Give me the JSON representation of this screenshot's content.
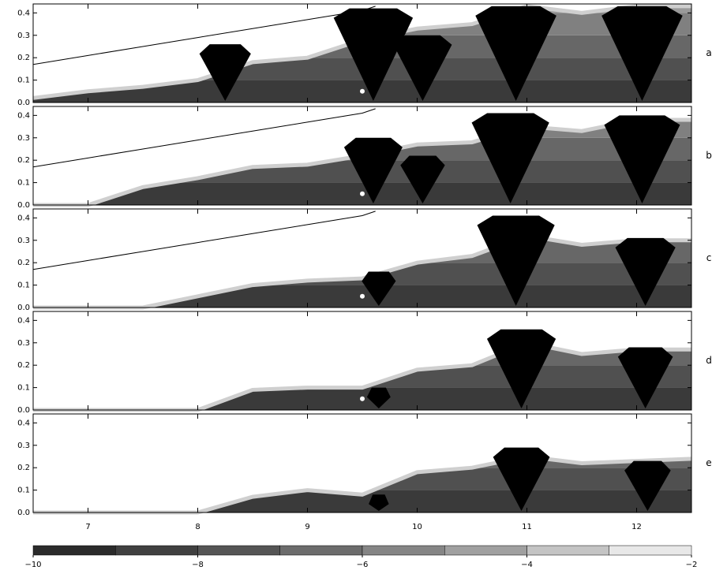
{
  "chart_data": [
    {
      "type": "stability-map",
      "label": "a",
      "xlim": [
        6.5,
        12.5
      ],
      "ylim": [
        0,
        0.44
      ],
      "yticks": [
        {
          "value": 0,
          "label": "0.0"
        },
        0.1,
        0.2,
        0.3,
        0.4
      ],
      "x": [
        6.5,
        7,
        7.5,
        8,
        8.5,
        9,
        9.5,
        10,
        10.5,
        11,
        11.5,
        12,
        12.5
      ],
      "edge": [
        0.02,
        0.05,
        0.07,
        0.1,
        0.18,
        0.2,
        0.28,
        0.33,
        0.35,
        0.43,
        0.4,
        0.43,
        0.43
      ],
      "wedges": [
        {
          "x": 8.25,
          "top": 0.26
        },
        {
          "x": 9.6,
          "top": 0.42
        },
        {
          "x": 10.05,
          "top": 0.3
        },
        {
          "x": 10.9,
          "top": 0.43
        },
        {
          "x": 12.05,
          "top": 0.43
        }
      ],
      "curve_x": [
        6.5,
        7,
        7.5,
        8,
        8.5,
        9,
        9.5,
        9.62
      ],
      "curve_y": [
        0.17,
        0.21,
        0.25,
        0.29,
        0.33,
        0.37,
        0.41,
        0.43
      ],
      "marker": {
        "x": 9.5,
        "y": 0.05
      }
    },
    {
      "type": "stability-map",
      "label": "b",
      "xlim": [
        6.5,
        12.5
      ],
      "ylim": [
        0,
        0.44
      ],
      "yticks": [
        {
          "value": 0,
          "label": "0.0"
        },
        0.1,
        0.2,
        0.3,
        0.4
      ],
      "x": [
        6.5,
        7,
        7.5,
        8,
        8.5,
        9,
        9.5,
        10,
        10.5,
        11,
        11.5,
        12,
        12.5
      ],
      "edge": [
        0,
        0,
        0.08,
        0.12,
        0.17,
        0.18,
        0.22,
        0.27,
        0.28,
        0.35,
        0.33,
        0.38,
        0.38
      ],
      "wedges": [
        {
          "x": 9.6,
          "top": 0.3
        },
        {
          "x": 10.05,
          "top": 0.22
        },
        {
          "x": 10.85,
          "top": 0.41
        },
        {
          "x": 12.05,
          "top": 0.4
        }
      ],
      "curve_x": [
        6.5,
        7,
        7.5,
        8,
        8.5,
        9,
        9.5,
        9.62
      ],
      "curve_y": [
        0.17,
        0.21,
        0.25,
        0.29,
        0.33,
        0.37,
        0.41,
        0.43
      ],
      "marker": {
        "x": 9.5,
        "y": 0.05
      }
    },
    {
      "type": "stability-map",
      "label": "c",
      "xlim": [
        6.5,
        12.5
      ],
      "ylim": [
        0,
        0.44
      ],
      "yticks": [
        {
          "value": 0,
          "label": "0.0"
        },
        0.1,
        0.2,
        0.3,
        0.4
      ],
      "x": [
        6.5,
        7,
        7.5,
        8,
        8.5,
        9,
        9.5,
        10,
        10.5,
        11,
        11.5,
        12,
        12.5
      ],
      "edge": [
        0,
        0,
        0,
        0.05,
        0.1,
        0.12,
        0.13,
        0.2,
        0.23,
        0.32,
        0.28,
        0.3,
        0.3
      ],
      "wedges": [
        {
          "x": 9.65,
          "top": 0.16
        },
        {
          "x": 10.9,
          "top": 0.41
        },
        {
          "x": 12.08,
          "top": 0.31
        }
      ],
      "curve_x": [
        6.5,
        7,
        7.5,
        8,
        8.5,
        9,
        9.5,
        9.62
      ],
      "curve_y": [
        0.17,
        0.21,
        0.25,
        0.29,
        0.33,
        0.37,
        0.41,
        0.43
      ],
      "marker": {
        "x": 9.5,
        "y": 0.05
      }
    },
    {
      "type": "stability-map",
      "label": "d",
      "xlim": [
        6.5,
        12.5
      ],
      "ylim": [
        0,
        0.44
      ],
      "yticks": [
        {
          "value": 0,
          "label": "0.0"
        },
        0.1,
        0.2,
        0.3,
        0.4
      ],
      "x": [
        6.5,
        7,
        7.5,
        8,
        8.5,
        9,
        9.5,
        10,
        10.5,
        11,
        11.5,
        12,
        12.5
      ],
      "edge": [
        0,
        0,
        0,
        0,
        0.09,
        0.1,
        0.1,
        0.18,
        0.2,
        0.3,
        0.25,
        0.27,
        0.27
      ],
      "wedges": [
        {
          "x": 9.65,
          "top": 0.1
        },
        {
          "x": 10.95,
          "top": 0.36
        },
        {
          "x": 12.08,
          "top": 0.28
        }
      ],
      "marker": {
        "x": 9.5,
        "y": 0.05
      }
    },
    {
      "type": "stability-map",
      "label": "e",
      "xlim": [
        6.5,
        12.5
      ],
      "ylim": [
        0,
        0.44
      ],
      "yticks": [
        {
          "value": 0,
          "label": "0.0"
        },
        0.1,
        0.2,
        0.3,
        0.4
      ],
      "xticks": [
        7,
        8,
        9,
        10,
        11,
        12
      ],
      "x": [
        6.5,
        7,
        7.5,
        8,
        8.5,
        9,
        9.5,
        10,
        10.5,
        11,
        11.5,
        12,
        12.5
      ],
      "edge": [
        0,
        0,
        0,
        0,
        0.07,
        0.1,
        0.08,
        0.18,
        0.2,
        0.25,
        0.22,
        0.23,
        0.24
      ],
      "wedges": [
        {
          "x": 9.65,
          "top": 0.08
        },
        {
          "x": 10.95,
          "top": 0.29
        },
        {
          "x": 12.1,
          "top": 0.23
        }
      ]
    },
    {
      "type": "colorbar",
      "xlim": [
        -10,
        -2
      ],
      "xticks": [
        {
          "value": -10,
          "label": "−10"
        },
        {
          "value": -8,
          "label": "−8"
        },
        {
          "value": -6,
          "label": "−6"
        },
        {
          "value": -4,
          "label": "−4"
        },
        {
          "value": -2,
          "label": "−2"
        }
      ],
      "bounds": [
        -10,
        -9,
        -8,
        -7,
        -6,
        -5,
        -4,
        -3,
        -2
      ],
      "colors": [
        "#2b2b2b",
        "#404040",
        "#555555",
        "#6c6c6c",
        "#858585",
        "#a0a0a0",
        "#c4c4c4",
        "#e8e8e8"
      ]
    }
  ]
}
